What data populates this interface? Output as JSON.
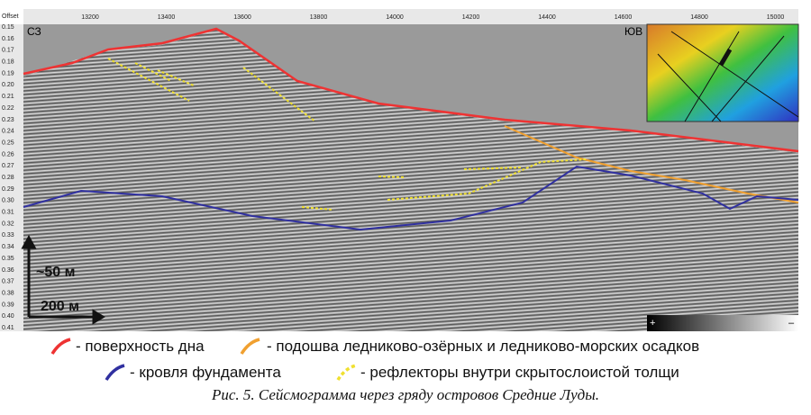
{
  "figure": {
    "axis": {
      "x_title": "Offset",
      "x_labels": [
        "13200",
        "13400",
        "13600",
        "13800",
        "14000",
        "14200",
        "14400",
        "14600",
        "14800",
        "15000"
      ],
      "y_labels": [
        "0.15",
        "0.16",
        "0.17",
        "0.18",
        "0.19",
        "0.20",
        "0.21",
        "0.22",
        "0.23",
        "0.24",
        "0.25",
        "0.26",
        "0.27",
        "0.28",
        "0.29",
        "0.30",
        "0.31",
        "0.32",
        "0.33",
        "0.34",
        "0.35",
        "0.36",
        "0.37",
        "0.38",
        "0.39",
        "0.40",
        "0.41"
      ]
    },
    "labels": {
      "left": "СЗ",
      "right": "ЮВ",
      "vertical_scale": "~50 м",
      "horizontal_scale": "200 м",
      "colorbar_plus": "+",
      "colorbar_minus": "–"
    },
    "legend": [
      {
        "text": "- поверхность дна"
      },
      {
        "text": "- подошва ледниково-озёрных и ледниково-морских осадков"
      },
      {
        "text": "- кровля фундамента"
      },
      {
        "text": "- рефлекторы внутри скрытослоистой толщи"
      }
    ],
    "caption": "Рис. 5. Сейсмограмма через гряду островов Средние Луды."
  }
}
